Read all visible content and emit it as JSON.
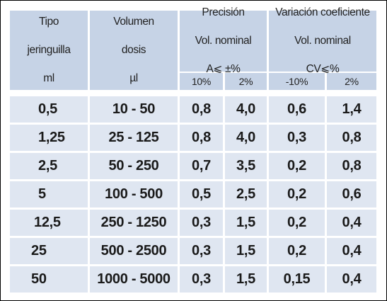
{
  "table": {
    "headers": {
      "tipo": [
        "Tipo",
        "jeringuilla",
        "ml"
      ],
      "volumen": [
        "Volumen",
        "dosis",
        "µl"
      ],
      "precision": [
        "Precisión",
        "Vol. nominal",
        "A⩽ ±%"
      ],
      "variacion": [
        "Variación coeficiente",
        "Vol. nominal",
        "CV⩽%"
      ]
    },
    "subheaders": {
      "precision_10": "10%",
      "precision_2": "2%",
      "variacion_10": "-10%",
      "variacion_2": "2%"
    },
    "rows": [
      {
        "tipo": "0,5",
        "volumen": "10 - 50",
        "p10": "0,8",
        "p2": "4,0",
        "v10": "0,6",
        "v2": "1,4"
      },
      {
        "tipo": "1,25",
        "volumen": "25 - 125",
        "p10": "0,8",
        "p2": "4,0",
        "v10": "0,3",
        "v2": "0,8"
      },
      {
        "tipo": "2,5",
        "volumen": "50 - 250",
        "p10": "0,7",
        "p2": "3,5",
        "v10": "0,2",
        "v2": "0,8"
      },
      {
        "tipo": "5",
        "volumen": "100 - 500",
        "p10": "0,5",
        "p2": "2,5",
        "v10": "0,2",
        "v2": "0,6"
      },
      {
        "tipo": "12,5",
        "volumen": "250 - 1250",
        "p10": "0,3",
        "p2": "1,5",
        "v10": "0,2",
        "v2": "0,4"
      },
      {
        "tipo": "25",
        "volumen": "500 - 2500",
        "p10": "0,3",
        "p2": "1,5",
        "v10": "0,2",
        "v2": "0,4"
      },
      {
        "tipo": "50",
        "volumen": "1000 - 5000",
        "p10": "0,3",
        "p2": "1,5",
        "v10": "0,15",
        "v2": "0,4"
      }
    ]
  },
  "colors": {
    "header_bg": "#c6d3e6",
    "data_bg": "#dfe6f1",
    "border": "#000000",
    "gap": "#ffffff"
  }
}
